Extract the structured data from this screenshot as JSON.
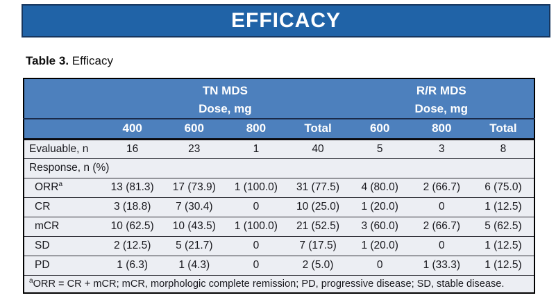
{
  "banner": {
    "title": "EFFICACY",
    "bg_color": "#2063A7",
    "border_color": "#16365F"
  },
  "caption": {
    "bold": "Table 3.",
    "rest": " Efficacy"
  },
  "table": {
    "header": {
      "groups": [
        {
          "title": "TN MDS",
          "subtitle": "Dose, mg",
          "cols": [
            "400",
            "600",
            "800",
            "Total"
          ]
        },
        {
          "title": "R/R MDS",
          "subtitle": "Dose, mg",
          "cols": [
            "600",
            "800",
            "Total"
          ]
        }
      ],
      "header_bg": "#4D80BD"
    },
    "rows": [
      {
        "label": "Evaluable, n",
        "indent": false,
        "fullspan": false,
        "values": [
          "16",
          "23",
          "1",
          "40",
          "5",
          "3",
          "8"
        ]
      },
      {
        "label": "Response, n (%)",
        "indent": false,
        "fullspan": true,
        "values": []
      },
      {
        "label": "ORR",
        "sup": "a",
        "indent": true,
        "fullspan": false,
        "values": [
          "13 (81.3)",
          "17 (73.9)",
          "1 (100.0)",
          "31 (77.5)",
          "4 (80.0)",
          "2 (66.7)",
          "6 (75.0)"
        ]
      },
      {
        "label": "CR",
        "indent": true,
        "fullspan": false,
        "values": [
          "3 (18.8)",
          "7 (30.4)",
          "0",
          "10 (25.0)",
          "1 (20.0)",
          "0",
          "1 (12.5)"
        ]
      },
      {
        "label": "mCR",
        "indent": true,
        "fullspan": false,
        "values": [
          "10 (62.5)",
          "10 (43.5)",
          "1 (100.0)",
          "21 (52.5)",
          "3 (60.0)",
          "2 (66.7)",
          "5 (62.5)"
        ]
      },
      {
        "label": "SD",
        "indent": true,
        "fullspan": false,
        "values": [
          "2 (12.5)",
          "5 (21.7)",
          "0",
          "7 (17.5)",
          "1 (20.0)",
          "0",
          "1 (12.5)"
        ]
      },
      {
        "label": "PD",
        "indent": true,
        "fullspan": false,
        "values": [
          "1 (6.3)",
          "1 (4.3)",
          "0",
          "2 (5.0)",
          "0",
          "1 (33.3)",
          "1 (12.5)"
        ]
      }
    ],
    "footnote": {
      "sup": "a",
      "text": "ORR = CR + mCR; mCR, morphologic complete remission; PD, progressive disease; SD, stable disease."
    },
    "body_bg": "#ECEEF3"
  }
}
